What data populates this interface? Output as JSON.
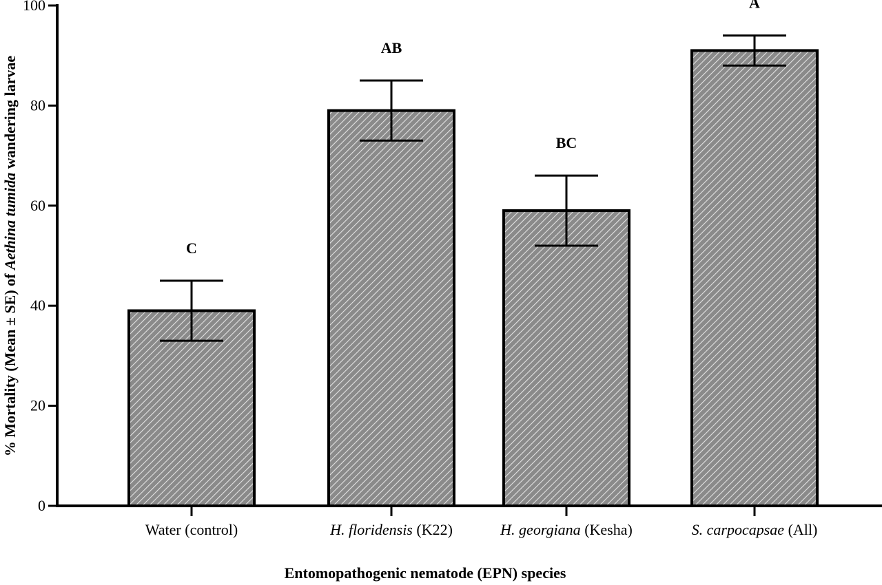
{
  "chart_data": {
    "type": "bar",
    "title": "",
    "xlabel": "Entomopathogenic nematode (EPN) species",
    "ylabel": {
      "prefix": "% Mortality (Mean ± SE) of ",
      "italic": "Aethina tumida",
      "suffix": " wandering larvae"
    },
    "ylim": [
      0,
      100
    ],
    "yticks": [
      "0",
      "20",
      "40",
      "60",
      "80",
      "100"
    ],
    "grid": false,
    "legend": null,
    "categories": [
      {
        "italic": "",
        "plain": "Water (control)"
      },
      {
        "italic": "H. floridensis",
        "plain": " (K22)"
      },
      {
        "italic": "H. georgiana",
        "plain": " (Kesha)"
      },
      {
        "italic": "S. carpocapsae",
        "plain": " (All)"
      }
    ],
    "values": [
      39,
      79,
      59,
      91
    ],
    "error_low": [
      33,
      73,
      52,
      88
    ],
    "error_high": [
      45,
      85,
      66,
      94
    ],
    "significance_letters": [
      "C",
      "AB",
      "BC",
      "A"
    ],
    "bar_fill": "hatched diagonal grey",
    "colors": {
      "bar_fill": "#8a8a8a",
      "hatch": "#e0e0e0",
      "stroke": "#000000"
    }
  }
}
